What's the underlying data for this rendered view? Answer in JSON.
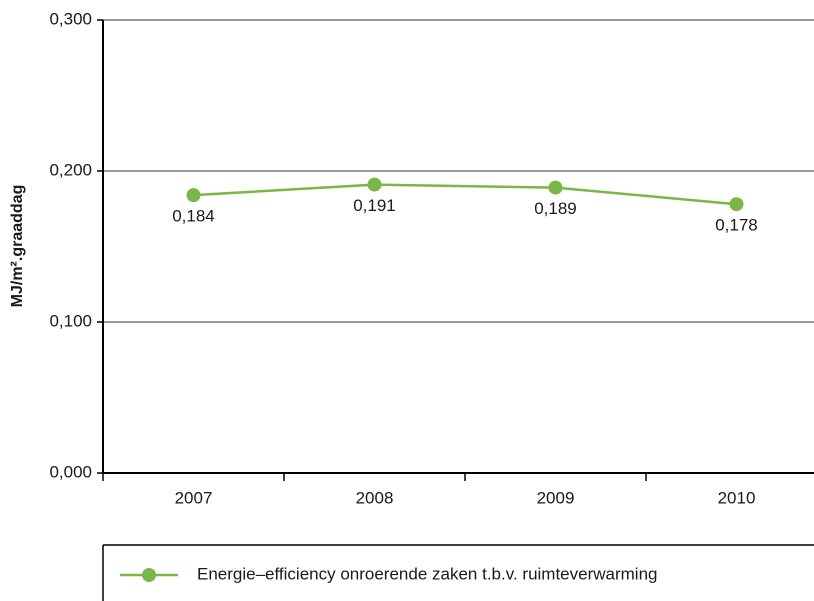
{
  "chart_data": {
    "type": "line",
    "y_label": "MJ/m².graaddag",
    "categories": [
      "2007",
      "2008",
      "2009",
      "2010"
    ],
    "series": [
      {
        "name": "Energie–efficiency onroerende zaken t.b.v. ruimteverwarming",
        "color": "#7ab648",
        "values": [
          0.184,
          0.191,
          0.189,
          0.178
        ],
        "value_labels": [
          "0,184",
          "0,191",
          "0,189",
          "0,178"
        ]
      }
    ],
    "ylim": [
      0,
      0.3
    ],
    "yticks": [
      {
        "value": 0,
        "label": "0,000"
      },
      {
        "value": 0.1,
        "label": "0,100"
      },
      {
        "value": 0.2,
        "label": "0,200"
      },
      {
        "value": 0.3,
        "label": "0,300"
      }
    ],
    "grid": true,
    "legend": "bottom"
  }
}
